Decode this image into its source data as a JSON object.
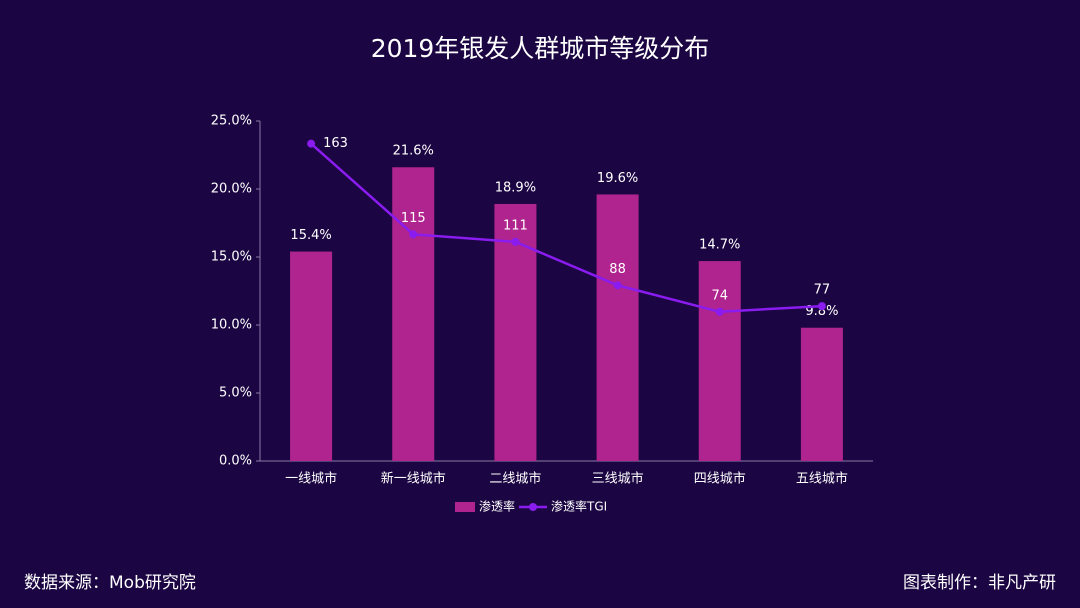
{
  "chart_data": {
    "type": "bar_line",
    "title": "2019年银发人群城市等级分布",
    "categories": [
      "一线城市",
      "新一线城市",
      "二线城市",
      "三线城市",
      "四线城市",
      "五线城市"
    ],
    "series": [
      {
        "name": "渗透率",
        "type": "bar",
        "color": "#b0248f",
        "values": [
          15.4,
          21.6,
          18.9,
          19.6,
          14.7,
          9.8
        ],
        "value_labels": [
          "15.4%",
          "21.6%",
          "18.9%",
          "19.6%",
          "14.7%",
          "9.8%"
        ]
      },
      {
        "name": "渗透率TGI",
        "type": "line",
        "axis": "y2",
        "color": "#8a1cf0",
        "values": [
          163,
          115,
          111,
          88,
          74,
          77
        ]
      }
    ],
    "ylim": [
      0,
      25
    ],
    "yticks": [
      {
        "value": 0,
        "label": "0.0%"
      },
      {
        "value": 5,
        "label": "5.0%"
      },
      {
        "value": 10,
        "label": "10.0%"
      },
      {
        "value": 15,
        "label": "15.0%"
      },
      {
        "value": 20,
        "label": "20.0%"
      },
      {
        "value": 25,
        "label": "25.0%"
      }
    ],
    "y2lim": [
      -5,
      175
    ],
    "legend": "bottom",
    "source": "数据来源：Mob研究院",
    "credit": "图表制作：非凡产研"
  }
}
